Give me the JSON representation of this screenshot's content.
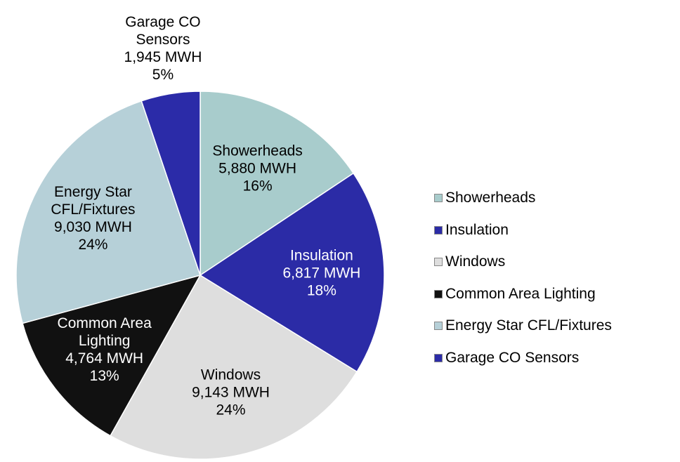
{
  "chart_data": {
    "type": "pie",
    "categories": [
      "Showerheads",
      "Insulation",
      "Windows",
      "Common Area Lighting",
      "Energy Star CFL/Fixtures",
      "Garage CO Sensors"
    ],
    "values": [
      5880,
      6817,
      9143,
      4764,
      9030,
      1945
    ],
    "value_labels": [
      "5,880 MWH",
      "6,817 MWH",
      "9,143 MWH",
      "4,764 MWH",
      "9,030 MWH",
      "1,945 MWH"
    ],
    "percent_labels": [
      "16%",
      "18%",
      "24%",
      "13%",
      "24%",
      "5%"
    ],
    "colors": [
      "#a8cccc",
      "#2b2ba6",
      "#dedede",
      "#111111",
      "#b6d0d8",
      "#2b2ba8"
    ],
    "legend": "right"
  }
}
